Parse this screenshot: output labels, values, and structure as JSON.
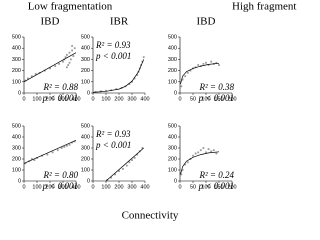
{
  "groups": [
    "Low fragmentation",
    "High fragment"
  ],
  "columns": [
    "IBD",
    "IBR",
    "IBD"
  ],
  "x_axis_label": "Connectivity",
  "chart_data": [
    {
      "type": "scatter",
      "xlim": [
        0,
        400
      ],
      "ylim": [
        0,
        500
      ],
      "xticks": [
        0,
        100,
        200,
        300,
        400
      ],
      "yticks": [
        0,
        100,
        200,
        300,
        400,
        500
      ],
      "annotations": [
        "R² = 0.88",
        "p < 0.001"
      ],
      "series": [
        {
          "color": "#9a9a9a",
          "x": [
            10,
            30,
            60,
            90,
            120,
            160,
            200,
            240,
            270,
            300,
            310,
            320,
            330,
            340,
            350,
            360,
            370,
            380,
            390,
            330,
            350,
            370
          ],
          "values": [
            110,
            130,
            150,
            170,
            180,
            200,
            220,
            240,
            260,
            280,
            300,
            320,
            340,
            250,
            360,
            300,
            380,
            330,
            400,
            230,
            270,
            420
          ]
        },
        {
          "color": "#000000",
          "x": [
            0,
            400
          ],
          "values": [
            100,
            360
          ]
        }
      ]
    },
    {
      "type": "scatter",
      "xlim": [
        0,
        400
      ],
      "ylim": [
        0,
        500
      ],
      "xticks": [
        0,
        100,
        200,
        300,
        400
      ],
      "yticks": [
        0,
        100,
        200,
        300,
        400,
        500
      ],
      "annotations": [
        "R² = 0.93",
        "p < 0.001"
      ],
      "series": [
        {
          "color": "#9a9a9a",
          "x": [
            20,
            60,
            100,
            140,
            180,
            220,
            250,
            280,
            300,
            320,
            340,
            350,
            360,
            370,
            380,
            390
          ],
          "values": [
            10,
            15,
            20,
            25,
            35,
            45,
            60,
            80,
            100,
            130,
            160,
            190,
            220,
            250,
            280,
            320
          ]
        },
        {
          "color": "#000000",
          "x": [
            0,
            100,
            200,
            250,
            300,
            350,
            390
          ],
          "values": [
            5,
            15,
            35,
            60,
            105,
            190,
            300
          ]
        }
      ]
    },
    {
      "type": "scatter",
      "xlim": [
        0,
        200
      ],
      "ylim": [
        0,
        500
      ],
      "xticks": [
        0,
        50,
        100,
        150,
        200
      ],
      "yticks": [
        0,
        100,
        200,
        300,
        400,
        500
      ],
      "annotations": [
        "R² = 0.38",
        "p < 0.001"
      ],
      "series": [
        {
          "color": "#9a9a9a",
          "x": [
            5,
            10,
            20,
            30,
            40,
            50,
            60,
            70,
            80,
            90,
            100,
            110,
            120,
            130,
            140,
            150
          ],
          "values": [
            60,
            120,
            150,
            180,
            200,
            220,
            230,
            250,
            240,
            260,
            270,
            250,
            280,
            260,
            270,
            250
          ]
        },
        {
          "color": "#000000",
          "x": [
            2,
            10,
            25,
            50,
            80,
            110,
            150
          ],
          "values": [
            80,
            150,
            190,
            220,
            240,
            255,
            265
          ]
        }
      ]
    },
    {
      "type": "scatter",
      "xlim": [
        0,
        400
      ],
      "ylim": [
        0,
        500
      ],
      "xticks": [
        0,
        100,
        200,
        300,
        400
      ],
      "yticks": [
        0,
        100,
        200,
        300,
        400,
        500
      ],
      "annotations": [
        "R² = 0.80",
        "p < 0.001"
      ],
      "series": [
        {
          "color": "#9a9a9a",
          "x": [
            10,
            40,
            60,
            80,
            100,
            140,
            180,
            220,
            260,
            290,
            310,
            330,
            350,
            370,
            390
          ],
          "values": [
            160,
            180,
            200,
            190,
            210,
            230,
            240,
            260,
            280,
            300,
            310,
            320,
            330,
            350,
            360
          ]
        },
        {
          "color": "#000000",
          "x": [
            0,
            400
          ],
          "values": [
            160,
            370
          ]
        }
      ]
    },
    {
      "type": "scatter",
      "xlim": [
        0,
        400
      ],
      "ylim": [
        0,
        500
      ],
      "xticks": [
        0,
        100,
        200,
        300,
        400
      ],
      "yticks": [
        0,
        100,
        200,
        300,
        400,
        500
      ],
      "annotations": [
        "R² = 0.93",
        "p < 0.001"
      ],
      "series": [
        {
          "color": "#9a9a9a",
          "x": [
            110,
            140,
            170,
            200,
            230,
            260,
            280,
            300,
            320,
            340,
            360,
            380
          ],
          "values": [
            10,
            30,
            60,
            90,
            110,
            140,
            170,
            190,
            210,
            240,
            270,
            300
          ]
        },
        {
          "color": "#000000",
          "x": [
            100,
            390
          ],
          "values": [
            0,
            300
          ]
        }
      ]
    },
    {
      "type": "scatter",
      "xlim": [
        0,
        200
      ],
      "ylim": [
        0,
        500
      ],
      "xticks": [
        0,
        50,
        100,
        150,
        200
      ],
      "yticks": [
        0,
        100,
        200,
        300,
        400,
        500
      ],
      "annotations": [
        "R² = 0.24",
        "p < 0.001"
      ],
      "series": [
        {
          "color": "#9a9a9a",
          "x": [
            5,
            10,
            20,
            30,
            40,
            50,
            60,
            70,
            80,
            90,
            100,
            110,
            120,
            130,
            140
          ],
          "values": [
            60,
            100,
            150,
            170,
            200,
            230,
            250,
            260,
            280,
            300,
            260,
            290,
            270,
            280,
            250
          ]
        },
        {
          "color": "#000000",
          "x": [
            2,
            10,
            25,
            50,
            80,
            110,
            150
          ],
          "values": [
            60,
            130,
            180,
            215,
            240,
            255,
            265
          ]
        }
      ]
    }
  ]
}
